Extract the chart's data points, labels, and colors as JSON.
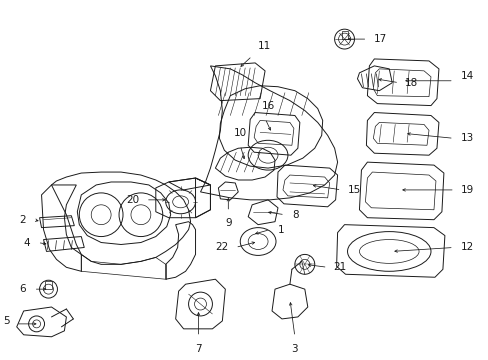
{
  "background_color": "#ffffff",
  "line_color": "#1a1a1a",
  "figsize": [
    4.89,
    3.6
  ],
  "dpi": 100,
  "label_fontsize": 7.5,
  "arrow_fontsize": 7.0
}
